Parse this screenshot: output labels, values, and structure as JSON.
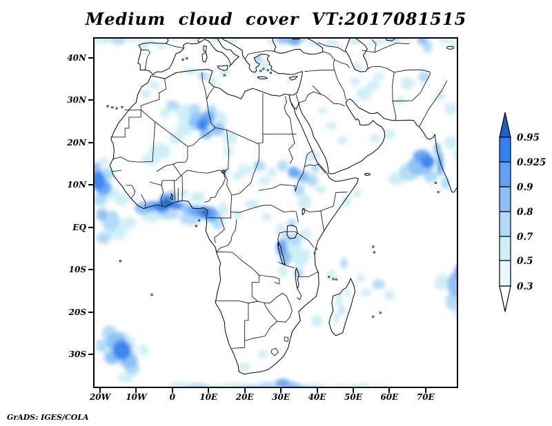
{
  "title": "Medium cloud cover VT:2017081515",
  "footer": "GrADS: IGES/COLA",
  "axes": {
    "lat_ticks": [
      {
        "label": "40N",
        "value": 40
      },
      {
        "label": "30N",
        "value": 30
      },
      {
        "label": "20N",
        "value": 20
      },
      {
        "label": "10N",
        "value": 10
      },
      {
        "label": "EQ",
        "value": 0
      },
      {
        "label": "10S",
        "value": -10
      },
      {
        "label": "20S",
        "value": -20
      },
      {
        "label": "30S",
        "value": -30
      }
    ],
    "lon_ticks": [
      {
        "label": "20W",
        "value": -20
      },
      {
        "label": "10W",
        "value": -10
      },
      {
        "label": "0",
        "value": 0
      },
      {
        "label": "10E",
        "value": 10
      },
      {
        "label": "20E",
        "value": 20
      },
      {
        "label": "30E",
        "value": 30
      },
      {
        "label": "40E",
        "value": 40
      },
      {
        "label": "50E",
        "value": 50
      },
      {
        "label": "60E",
        "value": 60
      },
      {
        "label": "70E",
        "value": 70
      }
    ]
  },
  "colorbar": {
    "levels": [
      "0.95",
      "0.925",
      "0.9",
      "0.8",
      "0.7",
      "0.5",
      "0.3"
    ],
    "box_colors": [
      "#3282f0",
      "#5ea3f5",
      "#8ac0f5",
      "#aedaf7",
      "#ceeff5",
      "#e8f8fc"
    ],
    "arrow_top_color": "#1b62c8",
    "arrow_bottom_color": "#ffffff",
    "outline_color": "#000000"
  },
  "palette": [
    "#e8f8fc",
    "#ceeff5",
    "#aedaf7",
    "#8ac0f5",
    "#5ea3f5",
    "#3282f0",
    "#1b62c8"
  ],
  "cloud_regions": [
    [
      -19,
      44.5,
      3,
      1.2,
      2
    ],
    [
      -15,
      44,
      2,
      0.9,
      3
    ],
    [
      -11,
      44.6,
      2.5,
      0.9,
      2
    ],
    [
      -6.5,
      43.8,
      2,
      0.8,
      2
    ],
    [
      -8,
      42.5,
      1.2,
      0.8,
      2
    ],
    [
      -3,
      42.8,
      1.5,
      0.7,
      2
    ],
    [
      0.5,
      44.5,
      1.5,
      0.7,
      2
    ],
    [
      5.5,
      44.8,
      2,
      0.8,
      2
    ],
    [
      12,
      44.8,
      2,
      0.8,
      3
    ],
    [
      17,
      44.3,
      1.5,
      0.8,
      2
    ],
    [
      23.8,
      39.8,
      1.3,
      1,
      3
    ],
    [
      25.5,
      38.3,
      1.2,
      1,
      2
    ],
    [
      23,
      36.5,
      1,
      0.7,
      2
    ],
    [
      27.5,
      44,
      1.5,
      0.8,
      2
    ],
    [
      31,
      44.3,
      2.2,
      1,
      4
    ],
    [
      33.8,
      43.9,
      1.8,
      0.9,
      5
    ],
    [
      36.2,
      44.6,
      1.5,
      0.7,
      3
    ],
    [
      39.5,
      43.5,
      2,
      0.8,
      2
    ],
    [
      44,
      43.5,
      2,
      1,
      2
    ],
    [
      50,
      44,
      2,
      0.8,
      2
    ],
    [
      56.5,
      43.8,
      2.5,
      0.9,
      2
    ],
    [
      61,
      44.3,
      2,
      0.7,
      3
    ],
    [
      64.5,
      44.8,
      2,
      0.6,
      2
    ],
    [
      69,
      44.2,
      1.3,
      1.1,
      4
    ],
    [
      70.5,
      42.7,
      1.3,
      1.6,
      3
    ],
    [
      75.5,
      44.3,
      2.2,
      0.9,
      2
    ],
    [
      78.5,
      43,
      1.5,
      1,
      2
    ],
    [
      5,
      26.5,
      3.5,
      2.5,
      2
    ],
    [
      7,
      25,
      2.5,
      2,
      4
    ],
    [
      8.3,
      24.2,
      1.6,
      1.4,
      6
    ],
    [
      9.8,
      25.8,
      1.8,
      1.6,
      5
    ],
    [
      6.2,
      27.8,
      1.8,
      1.4,
      3
    ],
    [
      10.8,
      27.2,
      1.6,
      1.8,
      3
    ],
    [
      12.5,
      23.2,
      2,
      1.5,
      4
    ],
    [
      9.3,
      22,
      1.8,
      1.2,
      4
    ],
    [
      13.5,
      25.5,
      1.8,
      1.8,
      2
    ],
    [
      2.5,
      27.5,
      2,
      1.5,
      2
    ],
    [
      0,
      28.8,
      1.8,
      1.2,
      3
    ],
    [
      -2,
      27,
      1.5,
      1.2,
      2
    ],
    [
      3.5,
      23.5,
      2.5,
      2,
      2
    ],
    [
      1,
      21,
      2,
      1.5,
      2
    ],
    [
      -3.5,
      18,
      3,
      2,
      2
    ],
    [
      -6,
      16,
      2.5,
      1.5,
      2
    ],
    [
      16,
      21,
      2,
      1.5,
      2
    ],
    [
      15.5,
      18,
      1.5,
      1.2,
      2
    ],
    [
      8.5,
      35.8,
      1.5,
      1,
      3
    ],
    [
      5,
      36.8,
      2,
      0.8,
      2
    ],
    [
      11,
      34.5,
      1.5,
      1,
      2
    ],
    [
      14.5,
      36.5,
      1.5,
      1,
      2
    ],
    [
      -7.5,
      31.5,
      1.5,
      1,
      2
    ],
    [
      -5,
      33.5,
      1.5,
      1,
      2
    ],
    [
      -8,
      4.5,
      2.5,
      1.5,
      4
    ],
    [
      -5.5,
      5,
      2,
      1.2,
      5
    ],
    [
      -3,
      4.8,
      2.2,
      1.4,
      6
    ],
    [
      -1.5,
      5.8,
      1.6,
      1.2,
      7
    ],
    [
      -2,
      6.8,
      1.5,
      1.2,
      5
    ],
    [
      -0.2,
      7.3,
      1.4,
      1.3,
      4
    ],
    [
      0.8,
      5.2,
      1.8,
      1,
      6
    ],
    [
      2.5,
      5,
      1.8,
      1,
      4
    ],
    [
      4.5,
      4.2,
      2,
      1.2,
      4
    ],
    [
      6.5,
      3.8,
      2,
      1.3,
      5
    ],
    [
      8.8,
      3.5,
      1.8,
      1.5,
      6
    ],
    [
      10.8,
      3,
      1.8,
      1.8,
      5
    ],
    [
      12.5,
      1.5,
      1.8,
      2,
      3
    ],
    [
      5,
      2,
      3,
      1.5,
      3
    ],
    [
      -1,
      3,
      3,
      1.2,
      3
    ],
    [
      -6,
      2.5,
      2.5,
      1.5,
      2
    ],
    [
      14,
      4.5,
      1.5,
      1.5,
      2
    ],
    [
      7,
      7,
      2,
      1.5,
      2
    ],
    [
      3,
      8,
      1.5,
      1,
      2
    ],
    [
      -20.5,
      11,
      2,
      2.2,
      6
    ],
    [
      -19,
      9.3,
      2.2,
      1.8,
      5
    ],
    [
      -21.5,
      13.8,
      1.8,
      1.6,
      4
    ],
    [
      -18,
      12.5,
      2,
      1.5,
      3
    ],
    [
      -20,
      6.5,
      2,
      1.5,
      3
    ],
    [
      -16.5,
      8,
      2,
      1.5,
      2
    ],
    [
      -19,
      15.5,
      1.5,
      1,
      2
    ],
    [
      -14,
      6.5,
      2,
      1.5,
      2
    ],
    [
      -17,
      1.5,
      2.5,
      2.5,
      3
    ],
    [
      -19.5,
      3,
      1.5,
      1.5,
      4
    ],
    [
      -15,
      -1,
      2.5,
      2,
      2
    ],
    [
      -19,
      -2.5,
      2,
      1.5,
      3
    ],
    [
      -12,
      1,
      2,
      1.5,
      2
    ],
    [
      20,
      13.5,
      2,
      1.3,
      2
    ],
    [
      24,
      14.5,
      1.8,
      1.3,
      3
    ],
    [
      27.5,
      13,
      1.5,
      1,
      2
    ],
    [
      30.5,
      14.5,
      1.5,
      1.3,
      3
    ],
    [
      33.5,
      13,
      1.6,
      1.3,
      5
    ],
    [
      25.5,
      11,
      1.8,
      1,
      2
    ],
    [
      18,
      12,
      1.5,
      1,
      2
    ],
    [
      14.5,
      13.2,
      1,
      0.8,
      3
    ],
    [
      36,
      12,
      1.8,
      1.4,
      4
    ],
    [
      38.5,
      11,
      1.8,
      1.4,
      3
    ],
    [
      35,
      8.8,
      1.6,
      1.4,
      3
    ],
    [
      39.5,
      13.8,
      1.2,
      1,
      3
    ],
    [
      38,
      16.5,
      1.5,
      1,
      2
    ],
    [
      36.5,
      6,
      2,
      1.8,
      2
    ],
    [
      41,
      9,
      1.5,
      1,
      2
    ],
    [
      40,
      17,
      1.2,
      1,
      2
    ],
    [
      30.2,
      -4.8,
      1.5,
      2,
      5
    ],
    [
      31.3,
      -7.2,
      1.5,
      1.8,
      4
    ],
    [
      33,
      -5.5,
      3,
      2.5,
      2
    ],
    [
      34,
      -3,
      1.8,
      1.5,
      3
    ],
    [
      32,
      -2.5,
      1.5,
      1.2,
      3
    ],
    [
      35.5,
      -8,
      1.8,
      1.5,
      2
    ],
    [
      34.8,
      -10.8,
      1.4,
      1.2,
      3
    ],
    [
      33,
      1,
      1.2,
      1,
      3
    ],
    [
      30,
      -0.5,
      1.5,
      1.5,
      2
    ],
    [
      37,
      -1.5,
      1.5,
      1.2,
      2
    ],
    [
      36.8,
      -6.5,
      1.5,
      1.5,
      2
    ],
    [
      30.5,
      -10.5,
      1.5,
      1.2,
      2
    ],
    [
      22,
      5.5,
      2,
      1.2,
      2
    ],
    [
      26,
      2.5,
      1.5,
      1,
      2
    ],
    [
      18,
      3,
      1.5,
      1,
      2
    ],
    [
      44,
      24,
      1.5,
      1,
      2
    ],
    [
      47,
      20.5,
      1.5,
      1,
      2
    ],
    [
      41.5,
      27.5,
      1.2,
      0.8,
      2
    ],
    [
      53,
      31.5,
      2.2,
      1.6,
      2
    ],
    [
      55.5,
      33.5,
      1.8,
      1.2,
      2
    ],
    [
      50.5,
      34.5,
      1.5,
      1,
      2
    ],
    [
      57,
      35.5,
      1.5,
      1,
      2
    ],
    [
      65,
      34,
      2,
      1.5,
      2
    ],
    [
      69.5,
      35.5,
      1.5,
      1.2,
      3
    ],
    [
      56,
      21,
      1.5,
      1,
      2
    ],
    [
      60,
      22,
      1.5,
      1.2,
      2
    ],
    [
      63,
      30,
      1.5,
      1,
      2
    ],
    [
      51,
      38,
      1.5,
      1,
      2
    ],
    [
      77,
      28,
      2,
      1.5,
      2
    ],
    [
      74,
      31,
      1.5,
      1.2,
      2
    ],
    [
      68.5,
      14.5,
      3.5,
      2.2,
      4
    ],
    [
      70.5,
      15.5,
      2,
      1.5,
      6
    ],
    [
      69,
      16.8,
      2.5,
      1.5,
      5
    ],
    [
      65.5,
      13,
      3,
      2,
      3
    ],
    [
      62,
      11.5,
      2.5,
      1.5,
      2
    ],
    [
      74,
      15,
      0.9,
      2.8,
      5
    ],
    [
      73.2,
      18.5,
      1,
      1.5,
      4
    ],
    [
      75.5,
      10.5,
      1.2,
      1.5,
      3
    ],
    [
      71.5,
      12,
      2,
      1.5,
      3
    ],
    [
      77,
      20,
      2,
      1.5,
      2
    ],
    [
      79,
      17,
      1.5,
      1.5,
      2
    ],
    [
      78.5,
      -13.5,
      2.5,
      3,
      4
    ],
    [
      79.8,
      -10.5,
      1.8,
      2,
      5
    ],
    [
      77.5,
      -17.5,
      2,
      2,
      3
    ],
    [
      74.5,
      -13,
      2,
      2,
      2
    ],
    [
      79,
      -20,
      1.5,
      1.5,
      2
    ],
    [
      57,
      -13.5,
      1.8,
      1.2,
      3
    ],
    [
      52,
      -12,
      1.2,
      1,
      2
    ],
    [
      47.5,
      -8.5,
      1,
      1.3,
      3
    ],
    [
      44,
      -11,
      1.2,
      1,
      2
    ],
    [
      53.5,
      -15.5,
      1.5,
      1,
      2
    ],
    [
      60,
      -16,
      1.5,
      1.2,
      2
    ],
    [
      46,
      -17,
      1,
      1.8,
      2
    ],
    [
      45.3,
      -21.5,
      0.9,
      1.5,
      2
    ],
    [
      46.8,
      -19.5,
      0.7,
      1.2,
      3
    ],
    [
      48.5,
      -15.5,
      0.8,
      1,
      2
    ],
    [
      40,
      -22,
      1.5,
      1.5,
      2
    ],
    [
      -14.5,
      -28.5,
      4.5,
      4,
      2
    ],
    [
      -15.5,
      -27,
      2.8,
      2.2,
      4
    ],
    [
      -14,
      -29,
      2.6,
      2.4,
      6
    ],
    [
      -12,
      -31.5,
      2.4,
      2,
      4
    ],
    [
      -16.8,
      -30.8,
      2,
      1.6,
      4
    ],
    [
      -17.5,
      -25,
      2,
      1.8,
      3
    ],
    [
      -11,
      -33.5,
      2,
      1.5,
      3
    ],
    [
      -19.5,
      -28,
      1.8,
      1.5,
      3
    ],
    [
      -13,
      -35.5,
      2,
      1.2,
      2
    ],
    [
      -8,
      -29,
      1.5,
      1.2,
      2
    ],
    [
      2,
      -37.5,
      3,
      1,
      2
    ],
    [
      7,
      -37.8,
      3.5,
      1,
      3
    ],
    [
      12,
      -38,
      3,
      0.9,
      2
    ],
    [
      17,
      -37.6,
      3.5,
      1,
      2
    ],
    [
      22,
      -38,
      3,
      0.9,
      3
    ],
    [
      26.5,
      -37.5,
      3,
      1,
      3
    ],
    [
      30.5,
      -36.8,
      2,
      1,
      5
    ],
    [
      33,
      -37.5,
      2.5,
      1,
      4
    ],
    [
      37,
      -38,
      2.5,
      0.9,
      3
    ],
    [
      40,
      -37.8,
      3,
      0.9,
      2
    ],
    [
      46,
      -38,
      3,
      0.9,
      2
    ],
    [
      52,
      -37.6,
      3,
      0.9,
      2
    ],
    [
      58,
      -38,
      2.5,
      0.8,
      2
    ],
    [
      20,
      -33,
      1.5,
      1,
      2
    ],
    [
      25,
      -30,
      1.5,
      1,
      2
    ],
    [
      48,
      6,
      1.5,
      1.2,
      2
    ],
    [
      51,
      8,
      1.2,
      1,
      2
    ]
  ]
}
